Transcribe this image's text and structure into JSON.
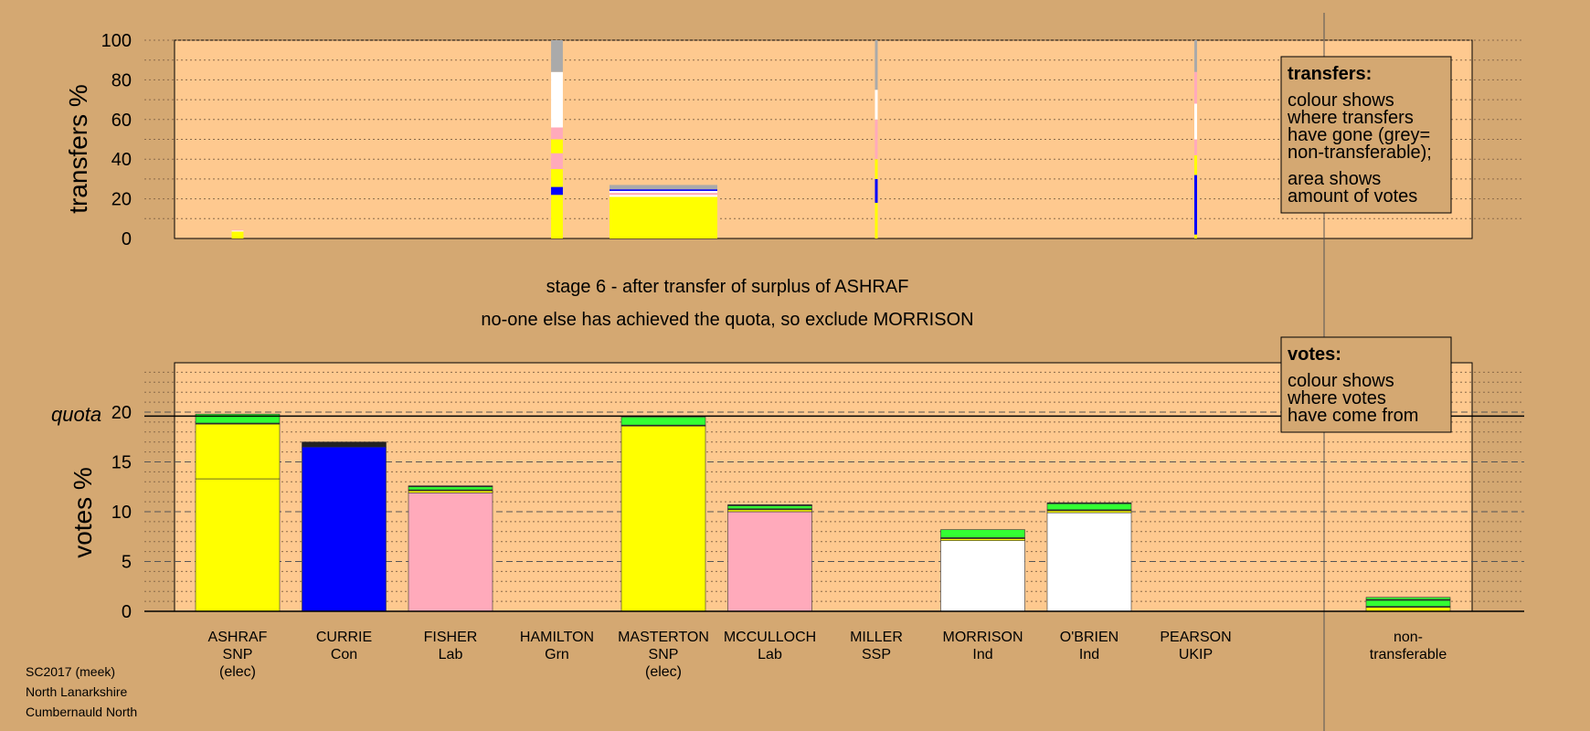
{
  "colors": {
    "background": "#d4a872",
    "panel": "#fec98f",
    "SNP": "#ffff00",
    "Con": "#0000ff",
    "Lab": "#ffaabb",
    "Ind": "#ffffff",
    "Grn": "#33ff33",
    "Oth": "#222222",
    "nontransferable": "#aaaaaa"
  },
  "caption": {
    "stage": "stage 6 - after transfer of surplus of ASHRAF",
    "action": "no-one else has achieved the quota, so exclude MORRISON"
  },
  "legend": {
    "transfers": {
      "heading": "transfers:",
      "lines1": [
        "colour shows",
        "where transfers",
        "have gone (grey=",
        "non-transferable);"
      ],
      "lines2": [
        "area shows",
        "amount of votes"
      ]
    },
    "votes": {
      "heading": "votes:",
      "lines": [
        "colour shows",
        "where votes",
        "have come from"
      ]
    }
  },
  "footer": [
    "SC2017 (meek)",
    "North Lanarkshire",
    "Cumbernauld North"
  ],
  "chart_data": [
    {
      "type": "bar",
      "id": "transfers",
      "ylabel": "transfers %",
      "ylim": [
        0,
        100
      ],
      "yticks": [
        0,
        20,
        40,
        60,
        80,
        100
      ],
      "columns": [
        {
          "candidate": "ASHRAF",
          "total": 4.5,
          "share": 0.14,
          "segments": [
            {
              "color": "SNP",
              "value": 3.5
            },
            {
              "color": "Ind",
              "value": 0.5
            },
            {
              "color": "Lab",
              "value": 0.4
            }
          ]
        },
        {
          "candidate": "HAMILTON",
          "total": 100,
          "share": 0.14,
          "segments": [
            {
              "color": "SNP",
              "value": 22
            },
            {
              "color": "Con",
              "value": 4
            },
            {
              "color": "SNP",
              "value": 9
            },
            {
              "color": "Lab",
              "value": 8
            },
            {
              "color": "SNP",
              "value": 7
            },
            {
              "color": "Lab",
              "value": 6
            },
            {
              "color": "Ind",
              "value": 28
            },
            {
              "color": "nontransferable",
              "value": 16
            }
          ]
        },
        {
          "candidate": "MASTERTON",
          "total": 27,
          "share": 1.0,
          "segments": [
            {
              "color": "SNP",
              "value": 21
            },
            {
              "color": "Ind",
              "value": 1
            },
            {
              "color": "Lab",
              "value": 1
            },
            {
              "color": "Ind",
              "value": 1
            },
            {
              "color": "Con",
              "value": 0.8
            },
            {
              "color": "nontransferable",
              "value": 2.2
            }
          ]
        },
        {
          "candidate": "MILLER",
          "total": 100,
          "share": 0.02,
          "segments": [
            {
              "color": "SNP",
              "value": 18
            },
            {
              "color": "Con",
              "value": 12
            },
            {
              "color": "SNP",
              "value": 10
            },
            {
              "color": "Lab",
              "value": 20
            },
            {
              "color": "Ind",
              "value": 15
            },
            {
              "color": "nontransferable",
              "value": 25
            }
          ]
        },
        {
          "candidate": "PEARSON",
          "total": 100,
          "share": 0.03,
          "segments": [
            {
              "color": "SNP",
              "value": 2
            },
            {
              "color": "Con",
              "value": 30
            },
            {
              "color": "SNP",
              "value": 10
            },
            {
              "color": "Lab",
              "value": 8
            },
            {
              "color": "Ind",
              "value": 18
            },
            {
              "color": "Lab",
              "value": 16
            },
            {
              "color": "nontransferable",
              "value": 16
            }
          ]
        }
      ]
    },
    {
      "type": "bar",
      "id": "votes",
      "ylabel": "votes %",
      "quota_label": "quota",
      "quota": 19.6,
      "ylim": [
        0,
        25
      ],
      "yticks": [
        0,
        5,
        10,
        15,
        20
      ],
      "categories": [
        {
          "name": "ASHRAF",
          "party": "SNP",
          "note": "(elec)",
          "segments": [
            {
              "color": "SNP",
              "value": 13.3
            },
            {
              "color": "SNP",
              "value": 5.5
            },
            {
              "color": "Oth",
              "value": 0.1
            },
            {
              "color": "Grn",
              "value": 0.9
            }
          ]
        },
        {
          "name": "CURRIE",
          "party": "Con",
          "note": "",
          "segments": [
            {
              "color": "Con",
              "value": 16.5
            },
            {
              "color": "Oth",
              "value": 0.5
            }
          ]
        },
        {
          "name": "FISHER",
          "party": "Lab",
          "note": "",
          "segments": [
            {
              "color": "Lab",
              "value": 11.9
            },
            {
              "color": "SNP",
              "value": 0.2
            },
            {
              "color": "Oth",
              "value": 0.1
            },
            {
              "color": "Grn",
              "value": 0.3
            },
            {
              "color": "Oth",
              "value": 0.1
            }
          ]
        },
        {
          "name": "HAMILTON",
          "party": "Grn",
          "note": "",
          "segments": []
        },
        {
          "name": "MASTERTON",
          "party": "SNP",
          "note": "(elec)",
          "segments": [
            {
              "color": "SNP",
              "value": 18.6
            },
            {
              "color": "Oth",
              "value": 0.1
            },
            {
              "color": "Grn",
              "value": 0.8
            }
          ]
        },
        {
          "name": "MCCULLOCH",
          "party": "Lab",
          "note": "",
          "segments": [
            {
              "color": "Lab",
              "value": 10.0
            },
            {
              "color": "SNP",
              "value": 0.2
            },
            {
              "color": "Oth",
              "value": 0.1
            },
            {
              "color": "Grn",
              "value": 0.3
            },
            {
              "color": "Oth",
              "value": 0.1
            }
          ]
        },
        {
          "name": "MILLER",
          "party": "SSP",
          "note": "",
          "segments": []
        },
        {
          "name": "MORRISON",
          "party": "Ind",
          "note": "",
          "segments": [
            {
              "color": "Ind",
              "value": 7.1
            },
            {
              "color": "SNP",
              "value": 0.2
            },
            {
              "color": "Oth",
              "value": 0.1
            },
            {
              "color": "Grn",
              "value": 0.8
            }
          ]
        },
        {
          "name": "O'BRIEN",
          "party": "Ind",
          "note": "",
          "segments": [
            {
              "color": "Ind",
              "value": 9.9
            },
            {
              "color": "SNP",
              "value": 0.2
            },
            {
              "color": "Oth",
              "value": 0.1
            },
            {
              "color": "Grn",
              "value": 0.6
            },
            {
              "color": "Oth",
              "value": 0.1
            }
          ]
        },
        {
          "name": "PEARSON",
          "party": "UKIP",
          "note": "",
          "segments": []
        },
        {
          "name": "non-",
          "party": "transferable",
          "note": "",
          "segments": [
            {
              "color": "SNP",
              "value": 0.4
            },
            {
              "color": "Oth",
              "value": 0.1
            },
            {
              "color": "Grn",
              "value": 0.6
            },
            {
              "color": "Oth",
              "value": 0.1
            },
            {
              "color": "Grn",
              "value": 0.2
            }
          ]
        }
      ]
    }
  ]
}
